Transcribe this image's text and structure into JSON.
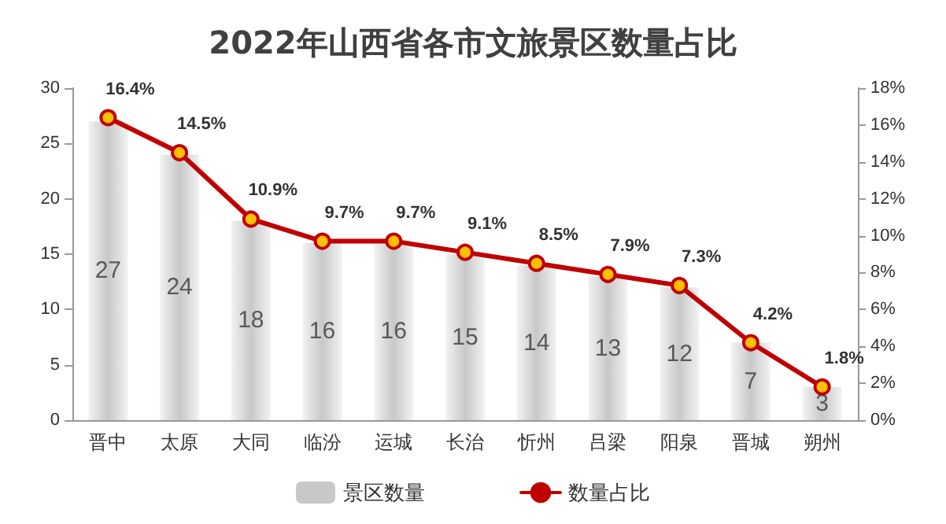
{
  "chart_data": {
    "type": "bar",
    "title": "2022年山西省各市文旅景区数量占比",
    "categories": [
      "晋中",
      "太原",
      "大同",
      "临汾",
      "运城",
      "长治",
      "忻州",
      "吕梁",
      "阳泉",
      "晋城",
      "朔州"
    ],
    "series": [
      {
        "name": "景区数量",
        "color": "#c8c8c8",
        "values": [
          27,
          24,
          18,
          16,
          16,
          15,
          14,
          13,
          12,
          7,
          3
        ],
        "value_labels": [
          "27",
          "24",
          "18",
          "16",
          "16",
          "15",
          "14",
          "13",
          "12",
          "7",
          "3"
        ]
      },
      {
        "name": "数量占比",
        "type": "line",
        "axis": "y2",
        "color": "#c00000",
        "values": [
          16.4,
          14.5,
          10.9,
          9.7,
          9.7,
          9.1,
          8.5,
          7.9,
          7.3,
          4.2,
          1.8
        ],
        "value_labels": [
          "16.4%",
          "14.5%",
          "10.9%",
          "9.7%",
          "9.7%",
          "9.1%",
          "8.5%",
          "7.9%",
          "7.3%",
          "4.2%",
          "1.8%"
        ]
      }
    ],
    "ylim": [
      0,
      30
    ],
    "yticks": [
      0,
      5,
      10,
      15,
      20,
      25,
      30
    ],
    "y2lim": [
      0,
      18
    ],
    "y2ticks": [
      {
        "value": 0,
        "label": "0%"
      },
      {
        "value": 2,
        "label": "2%"
      },
      {
        "value": 4,
        "label": "4%"
      },
      {
        "value": 6,
        "label": "6%"
      },
      {
        "value": 8,
        "label": "8%"
      },
      {
        "value": 10,
        "label": "10%"
      },
      {
        "value": 12,
        "label": "12%"
      },
      {
        "value": 14,
        "label": "14%"
      },
      {
        "value": 16,
        "label": "16%"
      },
      {
        "value": 18,
        "label": "18%"
      }
    ],
    "grid": false,
    "legend": "bottom",
    "marker": "circle",
    "line_style": "solid"
  }
}
